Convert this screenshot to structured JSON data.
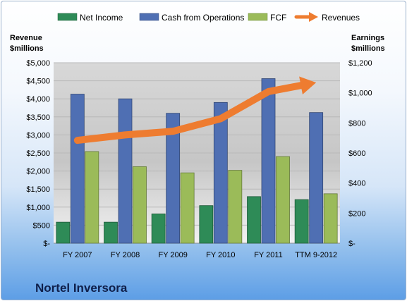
{
  "chart_data": {
    "type": "bar",
    "categories": [
      "FY 2007",
      "FY 2008",
      "FY 2009",
      "FY 2010",
      "FY 2011",
      "TTM 9-2012"
    ],
    "series": [
      {
        "name": "Net Income",
        "axis": "right",
        "color": "#2e8b57",
        "values": [
          140,
          140,
          195,
          250,
          310,
          290
        ]
      },
      {
        "name": "Cash from Operations",
        "axis": "left",
        "color": "#4f6fb3",
        "values": [
          4130,
          4000,
          3600,
          3900,
          4560,
          3620
        ]
      },
      {
        "name": "FCF",
        "axis": "left",
        "color": "#9bbb59",
        "values": [
          2540,
          2120,
          1950,
          2020,
          2400,
          1370
        ]
      },
      {
        "name": "Revenues",
        "type": "arrow-line",
        "axis": "left",
        "color": "#ee7c30",
        "values": [
          2850,
          3000,
          3100,
          3450,
          4200,
          4450
        ]
      }
    ],
    "left_axis": {
      "title": [
        "Revenue",
        "$millions"
      ],
      "ylim": [
        0,
        5000
      ],
      "ticks": [
        0,
        500,
        1000,
        1500,
        2000,
        2500,
        3000,
        3500,
        4000,
        4500,
        5000
      ],
      "tick_labels": [
        "$-",
        "$500",
        "$1,000",
        "$1,500",
        "$2,000",
        "$2,500",
        "$3,000",
        "$3,500",
        "$4,000",
        "$4,500",
        "$5,000"
      ]
    },
    "right_axis": {
      "title": [
        "Earnings",
        "$millions"
      ],
      "ylim": [
        0,
        1200
      ],
      "ticks": [
        0,
        200,
        400,
        600,
        800,
        1000,
        1200
      ],
      "tick_labels": [
        "$-",
        "$200",
        "$400",
        "$600",
        "$800",
        "$1,000",
        "$1,200"
      ]
    },
    "legend_position": "top",
    "grid": true
  },
  "company": "Nortel Inversora"
}
